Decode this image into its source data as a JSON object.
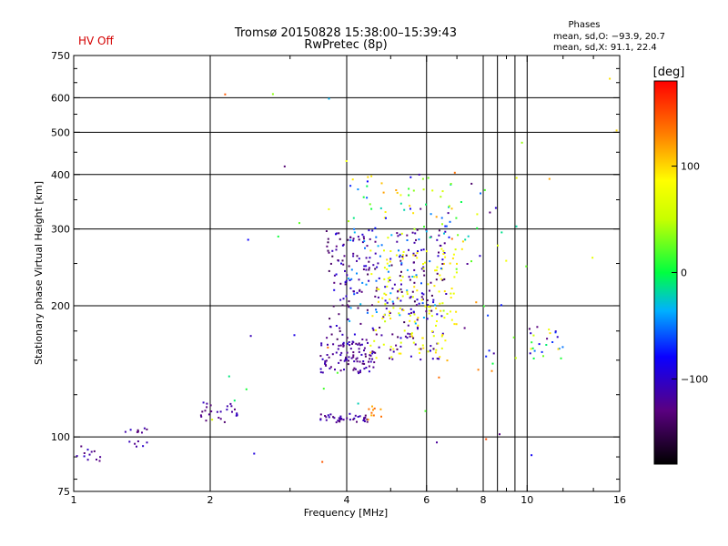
{
  "hv_status": "HV Off",
  "title_line1": "Tromsø 20150828 15:38:00–15:39:43",
  "title_line2": "RwPretec (8p)",
  "phases": {
    "title": "Phases",
    "o_line": "mean, sd,O: −93.9, 20.7",
    "x_line": "mean, sd,X:  91.1, 22.4"
  },
  "colorbar": {
    "unit_label": "[deg]",
    "range": [
      -180,
      180
    ],
    "ticks": [
      {
        "value": 100,
        "label": "100"
      },
      {
        "value": 0,
        "label": "0"
      },
      {
        "value": -100,
        "label": "−100"
      }
    ]
  },
  "chart_data": {
    "type": "scatter",
    "title": "Tromsø 20150828 15:38:00–15:39:43",
    "subtitle": "RwPretec (8p)",
    "xlabel": "Frequency [MHz]",
    "ylabel": "Stationary phase Virtual Height [km]",
    "xscale": "log",
    "yscale": "log",
    "xlim": [
      1,
      16
    ],
    "ylim": [
      75,
      750
    ],
    "grid": true,
    "x_ticks": [
      {
        "value": 1,
        "label": "1"
      },
      {
        "value": 2,
        "label": "2"
      },
      {
        "value": 4,
        "label": "4"
      },
      {
        "value": 6,
        "label": "6"
      },
      {
        "value": 8,
        "label": "8"
      },
      {
        "value": 10,
        "label": "10"
      },
      {
        "value": 16,
        "label": "16"
      }
    ],
    "x_minor_ticks": [
      3,
      5,
      7,
      9,
      12,
      14
    ],
    "y_ticks": [
      {
        "value": 75,
        "label": "75"
      },
      {
        "value": 100,
        "label": "100"
      },
      {
        "value": 200,
        "label": "200"
      },
      {
        "value": 300,
        "label": "300"
      },
      {
        "value": 400,
        "label": "400"
      },
      {
        "value": 500,
        "label": "500"
      },
      {
        "value": 600,
        "label": "600"
      },
      {
        "value": 750,
        "label": "750"
      }
    ],
    "y_minor_ticks": [
      80,
      90,
      125,
      150,
      175,
      250,
      350,
      450,
      550,
      650,
      700
    ],
    "vertical_gridlines": [
      2,
      4,
      6,
      8,
      8.6,
      9.4,
      10
    ],
    "horizontal_gridlines": [
      100,
      200,
      300,
      400,
      500,
      600
    ],
    "color_scale": "phase in degrees (-180 to 180, rainbow)",
    "clusters": [
      {
        "f": [
          1.0,
          1.2
        ],
        "h": [
          88,
          96
        ],
        "phase": [
          -140,
          -100
        ],
        "n": 12
      },
      {
        "f": [
          1.3,
          1.5
        ],
        "h": [
          95,
          105
        ],
        "phase": [
          -140,
          -100
        ],
        "n": 14
      },
      {
        "f": [
          1.9,
          2.3
        ],
        "h": [
          108,
          120
        ],
        "phase": [
          -140,
          -100
        ],
        "n": 26
      },
      {
        "f": [
          3.5,
          4.5
        ],
        "h": [
          108,
          113
        ],
        "phase": [
          -140,
          -100
        ],
        "n": 40
      },
      {
        "f": [
          4.3,
          4.8
        ],
        "h": [
          108,
          118
        ],
        "phase": [
          110,
          140
        ],
        "n": 10
      },
      {
        "f": [
          3.5,
          4.6
        ],
        "h": [
          140,
          165
        ],
        "phase": [
          -140,
          -100
        ],
        "n": 90
      },
      {
        "f": [
          3.6,
          6.6
        ],
        "h": [
          150,
          300
        ],
        "phase": [
          -150,
          -90
        ],
        "n": 260
      },
      {
        "f": [
          4.0,
          6.3
        ],
        "h": [
          180,
          300
        ],
        "phase": [
          -60,
          -30
        ],
        "n": 45
      },
      {
        "f": [
          4.5,
          7.0
        ],
        "h": [
          150,
          270
        ],
        "phase": [
          60,
          100
        ],
        "n": 140
      },
      {
        "f": [
          4.0,
          7.0
        ],
        "h": [
          280,
          400
        ],
        "phase": [
          -140,
          120
        ],
        "n": 60
      },
      {
        "f": [
          6.5,
          9.7
        ],
        "h": [
          140,
          400
        ],
        "phase": [
          -140,
          140
        ],
        "n": 45
      },
      {
        "f": [
          10.0,
          12.0
        ],
        "h": [
          150,
          180
        ],
        "phase": [
          -140,
          100
        ],
        "n": 25
      },
      {
        "f": [
          2.0,
          16.0
        ],
        "h": [
          80,
          700
        ],
        "phase": [
          -150,
          160
        ],
        "n": 40
      }
    ]
  }
}
